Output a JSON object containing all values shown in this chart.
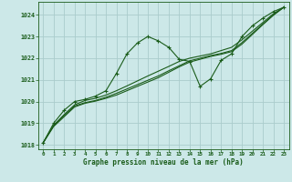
{
  "title": "Graphe pression niveau de la mer (hPa)",
  "bg_color": "#cce8e8",
  "grid_color": "#aacccc",
  "line_color": "#1a5c1a",
  "marker": "+",
  "markersize": 3,
  "linewidth": 0.8,
  "xlim": [
    -0.5,
    23.5
  ],
  "ylim": [
    1017.8,
    1024.6
  ],
  "yticks": [
    1018,
    1019,
    1020,
    1021,
    1022,
    1023,
    1024
  ],
  "xticks": [
    0,
    1,
    2,
    3,
    4,
    5,
    6,
    7,
    8,
    9,
    10,
    11,
    12,
    13,
    14,
    15,
    16,
    17,
    18,
    19,
    20,
    21,
    22,
    23
  ],
  "series": [
    [
      1018.1,
      1019.0,
      1019.6,
      1020.0,
      1020.1,
      1020.25,
      1020.5,
      1021.3,
      1022.2,
      1022.7,
      1023.0,
      1022.8,
      1022.5,
      1021.95,
      1021.85,
      1020.7,
      1021.05,
      1021.9,
      1022.2,
      1023.0,
      1023.5,
      1023.85,
      1024.15,
      1024.35
    ],
    [
      1018.1,
      1018.9,
      1019.4,
      1019.85,
      1020.05,
      1020.15,
      1020.3,
      1020.5,
      1020.72,
      1020.95,
      1021.18,
      1021.4,
      1021.62,
      1021.85,
      1022.0,
      1022.1,
      1022.2,
      1022.35,
      1022.5,
      1022.85,
      1023.25,
      1023.65,
      1024.05,
      1024.35
    ],
    [
      1018.1,
      1018.9,
      1019.35,
      1019.8,
      1019.95,
      1020.05,
      1020.2,
      1020.38,
      1020.58,
      1020.78,
      1020.98,
      1021.18,
      1021.42,
      1021.65,
      1021.88,
      1022.0,
      1022.12,
      1022.22,
      1022.35,
      1022.72,
      1023.15,
      1023.58,
      1024.0,
      1024.35
    ],
    [
      1018.1,
      1018.85,
      1019.3,
      1019.75,
      1019.92,
      1020.02,
      1020.15,
      1020.3,
      1020.5,
      1020.7,
      1020.9,
      1021.1,
      1021.35,
      1021.6,
      1021.82,
      1021.95,
      1022.08,
      1022.18,
      1022.3,
      1022.65,
      1023.1,
      1023.55,
      1023.98,
      1024.35
    ]
  ]
}
